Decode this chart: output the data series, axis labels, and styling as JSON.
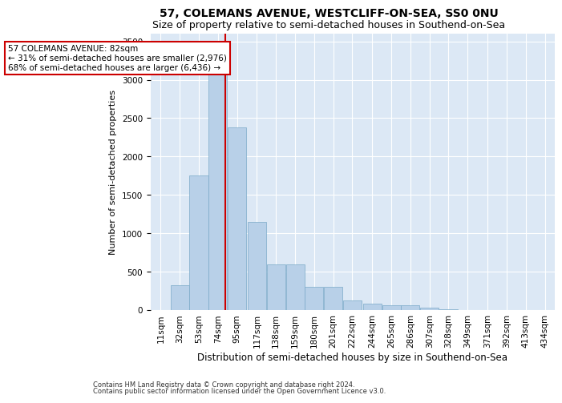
{
  "title": "57, COLEMANS AVENUE, WESTCLIFF-ON-SEA, SS0 0NU",
  "subtitle": "Size of property relative to semi-detached houses in Southend-on-Sea",
  "xlabel": "Distribution of semi-detached houses by size in Southend-on-Sea",
  "ylabel": "Number of semi-detached properties",
  "footnote1": "Contains HM Land Registry data © Crown copyright and database right 2024.",
  "footnote2": "Contains public sector information licensed under the Open Government Licence v3.0.",
  "annotation_title": "57 COLEMANS AVENUE: 82sqm",
  "annotation_line2": "← 31% of semi-detached houses are smaller (2,976)",
  "annotation_line3": "68% of semi-detached houses are larger (6,436) →",
  "property_size": 82,
  "categories": [
    "11sqm",
    "32sqm",
    "53sqm",
    "74sqm",
    "95sqm",
    "117sqm",
    "138sqm",
    "159sqm",
    "180sqm",
    "201sqm",
    "222sqm",
    "244sqm",
    "265sqm",
    "286sqm",
    "307sqm",
    "328sqm",
    "349sqm",
    "371sqm",
    "392sqm",
    "413sqm",
    "434sqm"
  ],
  "bin_centers": [
    11,
    32,
    53,
    74,
    95,
    117,
    138,
    159,
    180,
    201,
    222,
    244,
    265,
    286,
    307,
    328,
    349,
    371,
    392,
    413,
    434
  ],
  "bin_width": 21,
  "values": [
    5,
    320,
    1750,
    3400,
    2380,
    1150,
    590,
    590,
    300,
    300,
    130,
    80,
    65,
    60,
    30,
    15,
    5,
    3,
    2,
    1,
    0
  ],
  "bar_color": "#b8d0e8",
  "bar_edge_color": "#7aaac8",
  "vline_color": "#cc0000",
  "vline_x": 82,
  "annotation_box_edgecolor": "#cc0000",
  "plot_bg_color": "#dce8f5",
  "ylim": [
    0,
    3600
  ],
  "yticks": [
    0,
    500,
    1000,
    1500,
    2000,
    2500,
    3000,
    3500
  ],
  "title_fontsize": 10,
  "subtitle_fontsize": 9,
  "xlabel_fontsize": 8.5,
  "ylabel_fontsize": 8,
  "tick_fontsize": 7.5,
  "annotation_fontsize": 7.5,
  "footnote_fontsize": 6
}
